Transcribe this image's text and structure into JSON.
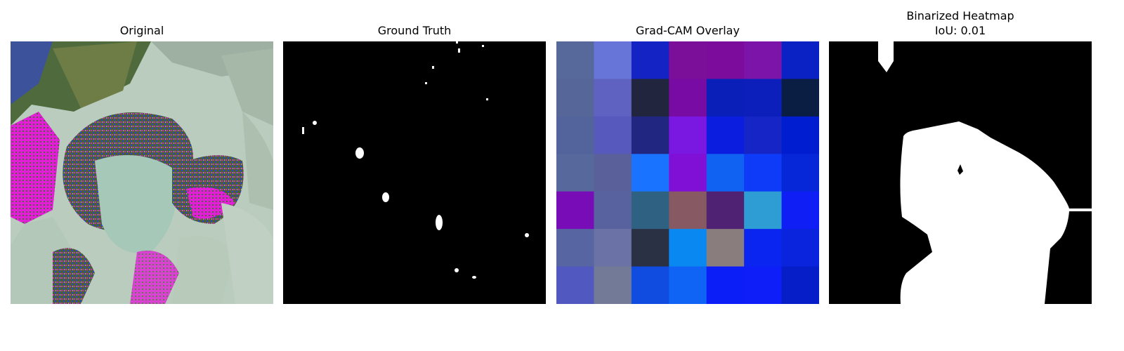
{
  "panels": [
    {
      "title": "Original"
    },
    {
      "title": "Ground Truth"
    },
    {
      "title": "Grad-CAM Overlay"
    },
    {
      "title": "Binarized Heatmap",
      "subtitle": "IoU: 0.01"
    }
  ],
  "gradcam_grid": [
    [
      "#56699a",
      "#6875d8",
      "#1424c4",
      "#7c0f9a",
      "#7c0d9c",
      "#7d14aa",
      "#0a22c4"
    ],
    [
      "#566699",
      "#5f62c0",
      "#21263e",
      "#780ba4",
      "#0a1fb8",
      "#0d1fbb",
      "#0a1d42"
    ],
    [
      "#53639b",
      "#5859bd",
      "#212780",
      "#7a17e0",
      "#0b1ee0",
      "#1626c6",
      "#001dd0"
    ],
    [
      "#57689c",
      "#5a6099",
      "#1a73ff",
      "#8010d6",
      "#0f62f2",
      "#0d3bf8",
      "#0627d8"
    ],
    [
      "#780cb6",
      "#58629e",
      "#2f6182",
      "#875a63",
      "#502273",
      "#2e9dd4",
      "#0f1ef4"
    ],
    [
      "#5766a3",
      "#6b72a6",
      "#2b3144",
      "#0a88f2",
      "#8a7d7d",
      "#0a25f0",
      "#0a24de"
    ],
    [
      "#5158bf",
      "#737a98",
      "#0f4cdf",
      "#0f63f5",
      "#0c1ef8",
      "#0d1ef8",
      "#061ec8"
    ]
  ]
}
